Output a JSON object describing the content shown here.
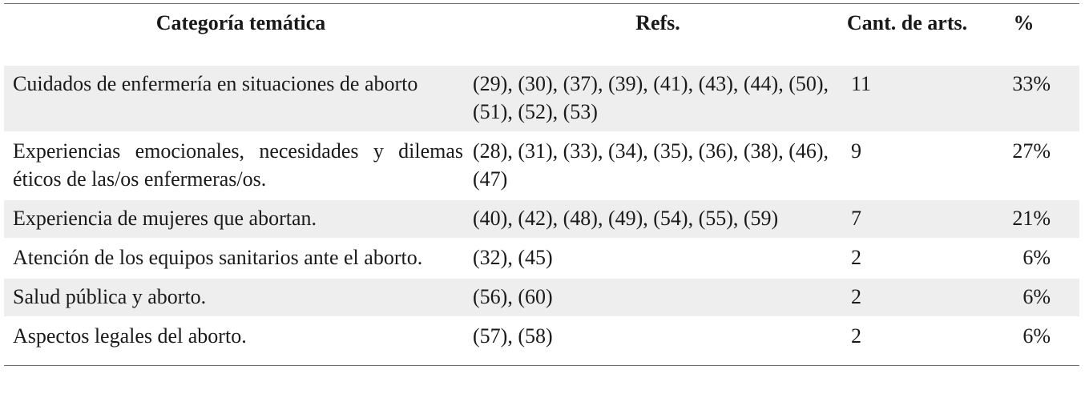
{
  "table": {
    "headers": {
      "category": "Categoría temática",
      "refs": "Refs.",
      "count": "Cant. de arts.",
      "percent": "%"
    },
    "rows": [
      {
        "category": "Cuidados de enfermería en situaciones de aborto",
        "refs": "(29), (30), (37), (39), (41), (43), (44), (50), (51), (52), (53)",
        "count": "11",
        "percent": "33%"
      },
      {
        "category": "Experiencias emocionales, necesidades y dilemas éticos de las/os enfermeras/os.",
        "refs": "(28), (31), (33), (34), (35), (36), (38), (46), (47)",
        "count": "9",
        "percent": "27%"
      },
      {
        "category": "Experiencia de mujeres que abortan.",
        "refs": "(40), (42), (48), (49), (54), (55), (59)",
        "count": "7",
        "percent": "21%"
      },
      {
        "category": "Atención de los equipos sanitarios ante el aborto.",
        "refs": "(32), (45)",
        "count": "2",
        "percent": "6%"
      },
      {
        "category": "Salud pública y aborto.",
        "refs": "(56), (60)",
        "count": "2",
        "percent": "6%"
      },
      {
        "category": "Aspectos legales del aborto.",
        "refs": "(57), (58)",
        "count": "2",
        "percent": "6%"
      }
    ]
  }
}
